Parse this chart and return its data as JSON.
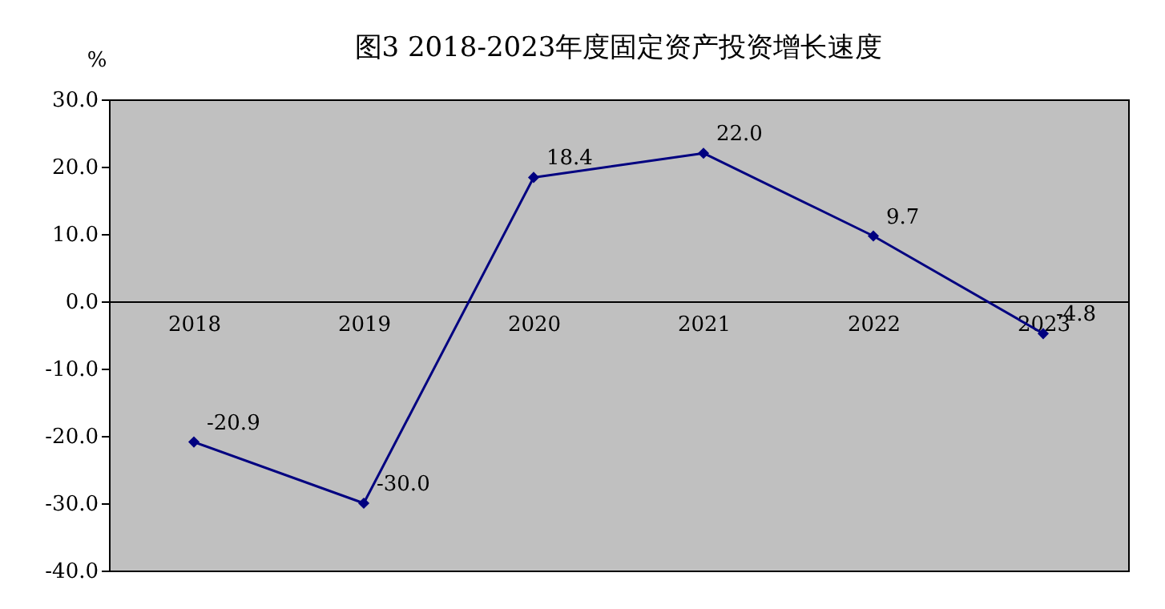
{
  "chart_data": {
    "type": "line",
    "title": "图3  2018-2023年度固定资产投资增长速度",
    "ylabel": "%",
    "categories": [
      "2018",
      "2019",
      "2020",
      "2021",
      "2022",
      "2023"
    ],
    "series": [
      {
        "color": "#000080",
        "values": [
          -20.9,
          -30.0,
          18.4,
          22.0,
          9.7,
          -4.8
        ],
        "value_labels": [
          "-20.9",
          "-30.0",
          "18.4",
          "22.0",
          "9.7",
          "-4.8"
        ]
      }
    ],
    "ylim": [
      -40,
      30
    ],
    "yticks": [
      {
        "value": 30,
        "label": "30.0"
      },
      {
        "value": 20,
        "label": "20.0"
      },
      {
        "value": 10,
        "label": "10.0"
      },
      {
        "value": 0,
        "label": "0.0"
      },
      {
        "value": -10,
        "label": "-10.0"
      },
      {
        "value": -20,
        "label": "-20.0"
      },
      {
        "value": -30,
        "label": "-30.0"
      },
      {
        "value": -40,
        "label": "-40.0"
      }
    ],
    "marker": "diamond",
    "line_style": "solid",
    "grid": false
  }
}
